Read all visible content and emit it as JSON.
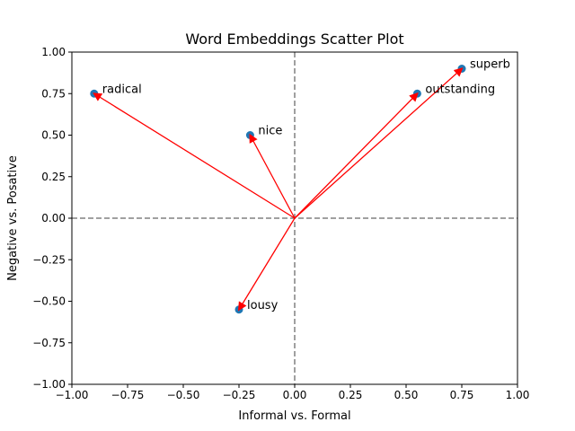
{
  "chart_data": {
    "type": "scatter",
    "title": "Word Embeddings Scatter Plot",
    "xlabel": "Informal vs. Formal",
    "ylabel": "Negative vs. Posative",
    "xlim": [
      -1.0,
      1.0
    ],
    "ylim": [
      -1.0,
      1.0
    ],
    "xticks": [
      -1.0,
      -0.75,
      -0.5,
      -0.25,
      0.0,
      0.25,
      0.5,
      0.75,
      1.0
    ],
    "yticks": [
      -1.0,
      -0.75,
      -0.5,
      -0.25,
      0.0,
      0.25,
      0.5,
      0.75,
      1.0
    ],
    "xtick_labels": [
      "−1.00",
      "−0.75",
      "−0.50",
      "−0.25",
      "0.00",
      "0.25",
      "0.50",
      "0.75",
      "1.00"
    ],
    "ytick_labels": [
      "−1.00",
      "−0.75",
      "−0.50",
      "−0.25",
      "0.00",
      "0.25",
      "0.50",
      "0.75",
      "1.00"
    ],
    "grid": false,
    "reference_lines": {
      "x": 0,
      "y": 0,
      "style": "dashed",
      "color": "#808080"
    },
    "arrows_from_origin": true,
    "point_color": "#1f77b4",
    "arrow_color": "#ff0000",
    "points": [
      {
        "label": "radical",
        "x": -0.9,
        "y": 0.75
      },
      {
        "label": "nice",
        "x": -0.2,
        "y": 0.5
      },
      {
        "label": "lousy",
        "x": -0.25,
        "y": -0.55
      },
      {
        "label": "outstanding",
        "x": 0.55,
        "y": 0.75
      },
      {
        "label": "superb",
        "x": 0.75,
        "y": 0.9
      }
    ]
  }
}
